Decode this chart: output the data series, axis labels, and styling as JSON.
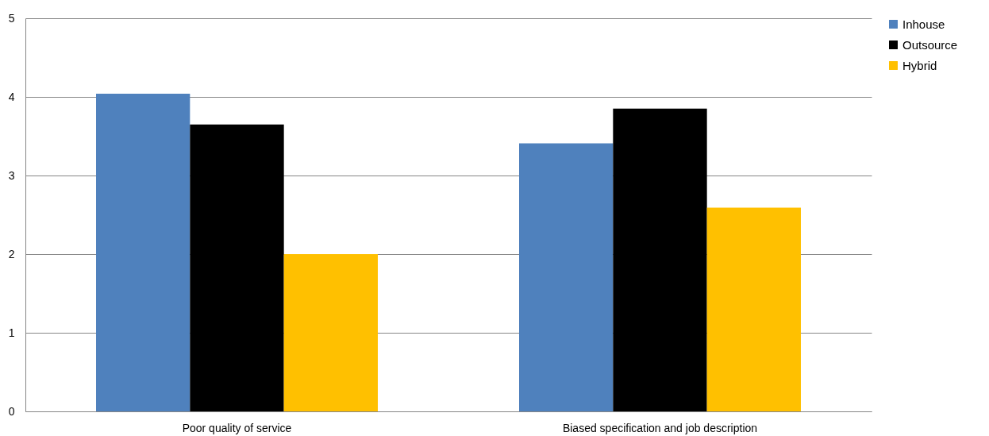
{
  "chart_data": {
    "type": "bar",
    "categories": [
      "Poor quality of service",
      "Biased specification and job description"
    ],
    "series": [
      {
        "name": "Inhouse",
        "color": "#4f81bd",
        "values": [
          4.04,
          3.41
        ]
      },
      {
        "name": "Outsource",
        "color": "#000000",
        "values": [
          3.65,
          3.85
        ]
      },
      {
        "name": "Hybrid",
        "color": "#ffc000",
        "values": [
          2.0,
          2.59
        ]
      }
    ],
    "ylim": [
      0,
      5
    ],
    "yticks": [
      0,
      1,
      2,
      3,
      4,
      5
    ],
    "grid": "y",
    "legend": "right"
  }
}
